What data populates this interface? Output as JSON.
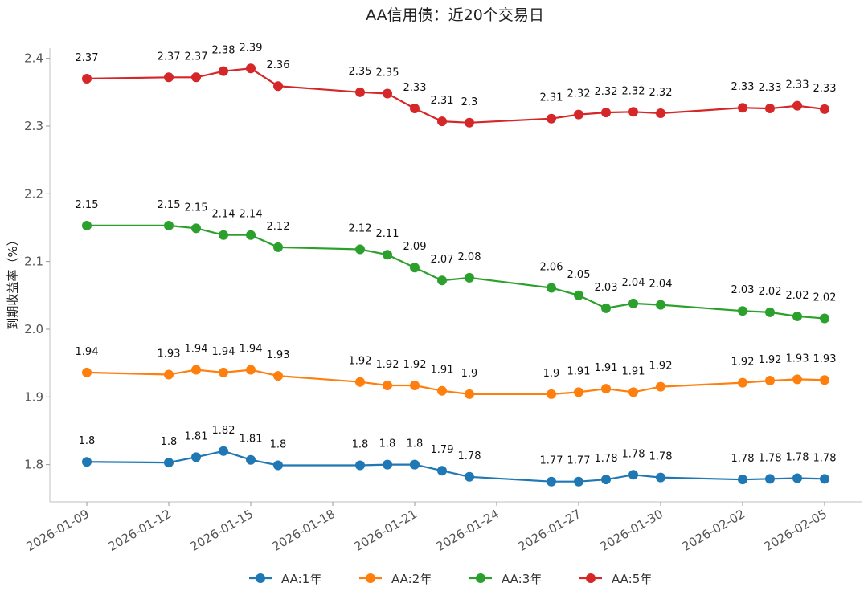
{
  "chart_data": {
    "type": "line",
    "title": "AA信用债：近20个交易日",
    "ylabel": "到期收益率（%）",
    "xlabel": "",
    "x": [
      "2026-01-09",
      "2026-01-12",
      "2026-01-13",
      "2026-01-14",
      "2026-01-15",
      "2026-01-16",
      "2026-01-19",
      "2026-01-20",
      "2026-01-21",
      "2026-01-22",
      "2026-01-23",
      "2026-01-26",
      "2026-01-27",
      "2026-01-28",
      "2026-01-29",
      "2026-01-30",
      "2026-02-02",
      "2026-02-03",
      "2026-02-04",
      "2026-02-05"
    ],
    "x_ticks": [
      "2026-01-09",
      "2026-01-12",
      "2026-01-15",
      "2026-01-18",
      "2026-01-21",
      "2026-01-24",
      "2026-01-27",
      "2026-01-30",
      "2026-02-02",
      "2026-02-05"
    ],
    "y_ticks": [
      "1.8",
      "1.9",
      "2.0",
      "2.1",
      "2.2",
      "2.3",
      "2.4"
    ],
    "ylim": [
      1.745,
      2.415
    ],
    "grid": false,
    "legend_position": "bottom-center",
    "series": [
      {
        "name": "AA:1年",
        "color": "#1f77b4",
        "values": [
          1.804,
          1.803,
          1.811,
          1.82,
          1.807,
          1.799,
          1.799,
          1.8,
          1.8,
          1.791,
          1.782,
          1.775,
          1.775,
          1.778,
          1.785,
          1.781,
          1.778,
          1.779,
          1.78,
          1.779
        ],
        "labels": [
          "1.8",
          "1.8",
          "1.81",
          "1.82",
          "1.81",
          "1.8",
          "1.8",
          "1.8",
          "1.8",
          "1.79",
          "1.78",
          "1.77",
          "1.77",
          "1.78",
          "1.78",
          "1.78",
          "1.78",
          "1.78",
          "1.78",
          "1.78"
        ]
      },
      {
        "name": "AA:2年",
        "color": "#ff7f0e",
        "values": [
          1.936,
          1.933,
          1.94,
          1.936,
          1.94,
          1.931,
          1.922,
          1.917,
          1.917,
          1.909,
          1.904,
          1.904,
          1.907,
          1.912,
          1.907,
          1.915,
          1.921,
          1.924,
          1.926,
          1.925
        ],
        "labels": [
          "1.94",
          "1.93",
          "1.94",
          "1.94",
          "1.94",
          "1.93",
          "1.92",
          "1.92",
          "1.92",
          "1.91",
          "1.9",
          "1.9",
          "1.91",
          "1.91",
          "1.91",
          "1.92",
          "1.92",
          "1.92",
          "1.93",
          "1.93"
        ]
      },
      {
        "name": "AA:3年",
        "color": "#2ca02c",
        "values": [
          2.153,
          2.153,
          2.149,
          2.139,
          2.139,
          2.121,
          2.118,
          2.11,
          2.091,
          2.072,
          2.076,
          2.061,
          2.05,
          2.031,
          2.038,
          2.036,
          2.027,
          2.025,
          2.019,
          2.016
        ],
        "labels": [
          "2.15",
          "2.15",
          "2.15",
          "2.14",
          "2.14",
          "2.12",
          "2.12",
          "2.11",
          "2.09",
          "2.07",
          "2.08",
          "2.06",
          "2.05",
          "2.03",
          "2.04",
          "2.04",
          "2.03",
          "2.02",
          "2.02",
          "2.02"
        ]
      },
      {
        "name": "AA:5年",
        "color": "#d62728",
        "values": [
          2.37,
          2.372,
          2.372,
          2.381,
          2.385,
          2.359,
          2.35,
          2.348,
          2.326,
          2.307,
          2.305,
          2.311,
          2.317,
          2.32,
          2.321,
          2.319,
          2.327,
          2.326,
          2.33,
          2.325
        ],
        "labels": [
          "2.37",
          "2.37",
          "2.37",
          "2.38",
          "2.39",
          "2.36",
          "2.35",
          "2.35",
          "2.33",
          "2.31",
          "2.3",
          "2.31",
          "2.32",
          "2.32",
          "2.32",
          "2.32",
          "2.33",
          "2.33",
          "2.33",
          "2.33"
        ]
      }
    ]
  }
}
